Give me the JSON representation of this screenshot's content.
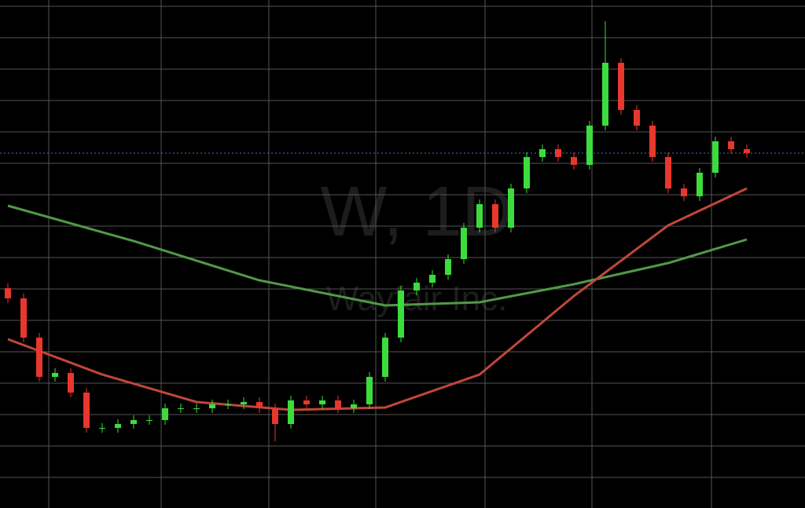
{
  "chart_data": {
    "type": "candlestick",
    "watermark": "W, 1D",
    "subtitle": "Wayfair Inc.",
    "categories": [
      null,
      null,
      null,
      null,
      null,
      null,
      null,
      null,
      null,
      null,
      null,
      null,
      null,
      null,
      null,
      null,
      null,
      null,
      null,
      null,
      null,
      null,
      null,
      null,
      null,
      null,
      null,
      null,
      null,
      null,
      null,
      null,
      null,
      null,
      null,
      null,
      null,
      null,
      null,
      null,
      null,
      null,
      null,
      null,
      null,
      null,
      null,
      null
    ],
    "open": [
      280,
      267,
      217,
      167,
      172,
      147,
      102,
      102,
      107,
      112,
      112,
      127,
      127,
      127,
      132,
      132,
      135,
      127,
      107,
      137,
      132,
      137,
      127,
      132,
      167,
      217,
      277,
      287,
      297,
      317,
      357,
      387,
      357,
      407,
      447,
      457,
      447,
      437,
      487,
      567,
      507,
      487,
      447,
      407,
      397,
      427,
      467,
      457
    ],
    "high": [
      286,
      273,
      223,
      178,
      178,
      153,
      108,
      113,
      118,
      118,
      133,
      133,
      133,
      138,
      138,
      141,
      141,
      133,
      143,
      143,
      143,
      143,
      138,
      173,
      223,
      283,
      293,
      303,
      323,
      363,
      393,
      393,
      413,
      453,
      463,
      463,
      453,
      493,
      620,
      573,
      513,
      493,
      453,
      413,
      433,
      473,
      473,
      463
    ],
    "low": [
      261,
      211,
      161,
      161,
      141,
      96,
      96,
      96,
      101,
      106,
      106,
      121,
      121,
      121,
      126,
      126,
      121,
      85,
      101,
      126,
      126,
      121,
      121,
      126,
      161,
      211,
      271,
      281,
      291,
      311,
      351,
      351,
      351,
      401,
      441,
      441,
      431,
      431,
      481,
      501,
      481,
      441,
      401,
      391,
      391,
      421,
      451,
      446
    ],
    "close": [
      267,
      217,
      167,
      172,
      147,
      102,
      102,
      107,
      112,
      112,
      127,
      127,
      127,
      132,
      132,
      135,
      127,
      107,
      137,
      132,
      137,
      127,
      132,
      167,
      217,
      277,
      287,
      297,
      317,
      357,
      387,
      357,
      407,
      447,
      457,
      447,
      437,
      487,
      567,
      507,
      487,
      447,
      407,
      397,
      427,
      467,
      457,
      452
    ],
    "up_color": "#3ddc3d",
    "down_color": "#e8372c",
    "overlays": [
      {
        "color": "#4f9a45",
        "x": [
          0,
          8,
          16,
          24,
          30,
          36,
          42,
          47
        ],
        "values": [
          385,
          340,
          290,
          258,
          262,
          285,
          312,
          342
        ]
      },
      {
        "color": "#c0473a",
        "x": [
          0,
          6,
          12,
          18,
          24,
          30,
          36,
          42,
          47
        ],
        "values": [
          215,
          170,
          135,
          125,
          128,
          170,
          270,
          360,
          407
        ]
      }
    ],
    "ylim": [
      0,
      647
    ],
    "grid": true,
    "last_price_line": true
  }
}
